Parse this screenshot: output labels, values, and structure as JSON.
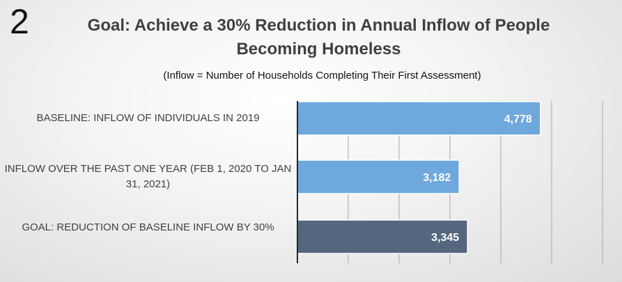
{
  "slide": {
    "number": "2"
  },
  "chart_data": {
    "type": "bar",
    "orientation": "horizontal",
    "title": "Goal: Achieve a 30% Reduction in Annual Inflow of People Becoming Homeless",
    "subtitle": "(Inflow = Number of  Households Completing Their First Assessment)",
    "categories": [
      "BASELINE: INFLOW OF INDIVIDUALS IN 2019",
      "INFLOW OVER THE PAST ONE YEAR (FEB 1, 2020 TO JAN 31, 2021)",
      "GOAL: REDUCTION OF BASELINE INFLOW BY 30%"
    ],
    "values": [
      4778,
      3182,
      3345
    ],
    "data_labels": [
      "4,778",
      "3,182",
      "3,345"
    ],
    "colors": [
      "#6fa8dc",
      "#6fa8dc",
      "#55677f"
    ],
    "xlim": [
      0,
      6000
    ],
    "grid": true,
    "legend": "none"
  }
}
